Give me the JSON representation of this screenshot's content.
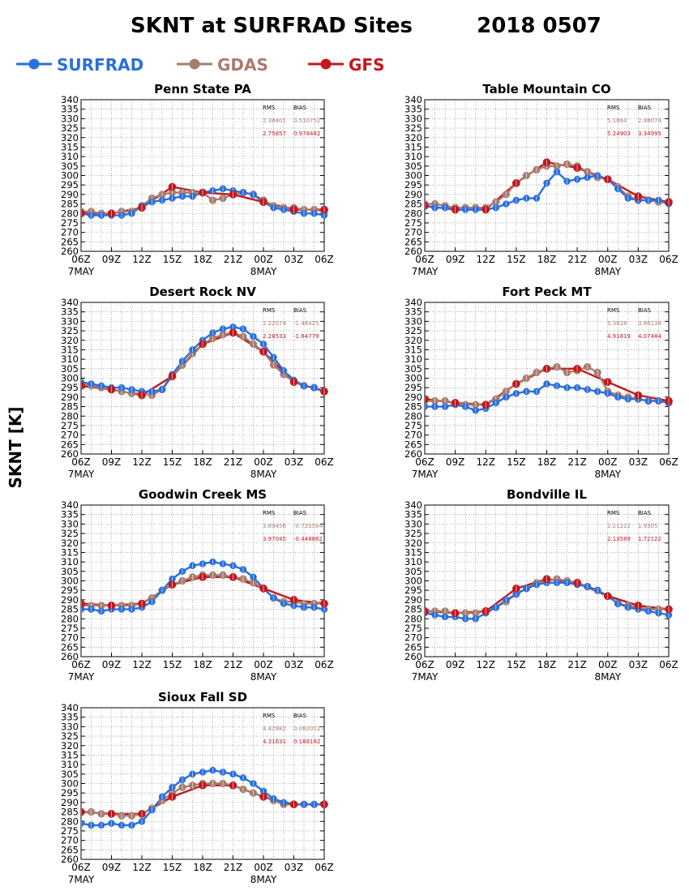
{
  "title": "SKNT at SURFRAD Sites",
  "date": "2018 0507",
  "ylabel": "SKNT [K]",
  "legend": [
    {
      "name": "SURFRAD",
      "color": "#2a6fdb"
    },
    {
      "name": "GDAS",
      "color": "#a87c6f"
    },
    {
      "name": "GFS",
      "color": "#c0181e"
    }
  ],
  "stats_header": {
    "rms": "RMS",
    "bias": "BIAS"
  },
  "x_ticks": [
    "06Z",
    "09Z",
    "12Z",
    "15Z",
    "18Z",
    "21Z",
    "00Z",
    "03Z",
    "06Z"
  ],
  "x_day_labels": [
    "7MAY",
    "8MAY"
  ],
  "y_ticks": [
    260,
    265,
    270,
    275,
    280,
    285,
    290,
    295,
    300,
    305,
    310,
    315,
    320,
    325,
    330,
    335,
    340
  ],
  "chart_data": [
    {
      "type": "line",
      "title": "Penn State PA",
      "ylim": [
        260,
        340
      ],
      "x_hours": [
        6,
        30
      ],
      "stats": {
        "gdas": {
          "rms": "2.38401",
          "bias": "0.510752"
        },
        "gfs": {
          "rms": "2.75857",
          "bias": "0.978482"
        }
      },
      "series": [
        {
          "name": "SURFRAD",
          "x": [
            6,
            7,
            8,
            9,
            10,
            11,
            12,
            13,
            14,
            15,
            16,
            17,
            18,
            19,
            20,
            21,
            22,
            23,
            24,
            25,
            26,
            27,
            28,
            29,
            30
          ],
          "values": [
            280,
            279,
            279,
            279,
            279,
            280,
            284,
            286,
            287,
            288,
            289,
            289,
            291,
            292,
            293,
            292,
            291,
            290,
            286,
            283,
            282,
            281,
            280,
            280,
            279
          ]
        },
        {
          "name": "GDAS",
          "x": [
            6,
            7,
            8,
            9,
            10,
            11,
            12,
            13,
            14,
            15,
            16,
            17,
            18,
            19,
            20,
            21,
            22,
            23,
            24,
            25,
            26,
            27,
            28,
            29,
            30
          ],
          "values": [
            281,
            281,
            280,
            280,
            281,
            281,
            284,
            288,
            290,
            291,
            291,
            291,
            291,
            287,
            288,
            290,
            291,
            290,
            287,
            284,
            283,
            283,
            282,
            282,
            281
          ]
        },
        {
          "name": "GFS",
          "x": [
            6,
            9,
            12,
            15,
            18,
            21,
            24,
            27,
            30
          ],
          "values": [
            280,
            280,
            283,
            294,
            291,
            290,
            286,
            282,
            282
          ]
        }
      ]
    },
    {
      "type": "line",
      "title": "Table Mountain CO",
      "ylim": [
        260,
        340
      ],
      "x_hours": [
        6,
        30
      ],
      "stats": {
        "gdas": {
          "rms": "5.1884",
          "bias": "2.98074"
        },
        "gfs": {
          "rms": "5.24903",
          "bias": "3.34995"
        }
      },
      "series": [
        {
          "name": "SURFRAD",
          "x": [
            6,
            7,
            8,
            9,
            10,
            11,
            12,
            13,
            14,
            15,
            16,
            17,
            18,
            19,
            20,
            21,
            22,
            23,
            24,
            25,
            26,
            27,
            28,
            29,
            30
          ],
          "values": [
            284,
            283,
            283,
            282,
            282,
            282,
            282,
            283,
            285,
            287,
            288,
            288,
            296,
            302,
            297,
            298,
            299,
            300,
            298,
            293,
            288,
            287,
            287,
            287,
            285
          ]
        },
        {
          "name": "GDAS",
          "x": [
            6,
            7,
            8,
            9,
            10,
            11,
            12,
            13,
            14,
            15,
            16,
            17,
            18,
            19,
            20,
            21,
            22,
            23,
            24,
            25,
            26,
            27,
            28,
            29,
            30
          ],
          "values": [
            285,
            285,
            284,
            283,
            283,
            283,
            283,
            286,
            290,
            296,
            300,
            303,
            305,
            305,
            306,
            305,
            302,
            299,
            298,
            294,
            289,
            287,
            287,
            286,
            286
          ]
        },
        {
          "name": "GFS",
          "x": [
            6,
            9,
            12,
            15,
            18,
            21,
            24,
            27,
            30
          ],
          "values": [
            284,
            282,
            282,
            296,
            307,
            304,
            298,
            289,
            286
          ]
        }
      ]
    },
    {
      "type": "line",
      "title": "Desert Rock NV",
      "ylim": [
        260,
        340
      ],
      "x_hours": [
        6,
        30
      ],
      "stats": {
        "gdas": {
          "rms": "2.22074",
          "bias": "-1.48425"
        },
        "gfs": {
          "rms": "2.28533",
          "bias": "-1.84779"
        }
      },
      "series": [
        {
          "name": "SURFRAD",
          "x": [
            6,
            7,
            8,
            9,
            10,
            11,
            12,
            13,
            14,
            15,
            16,
            17,
            18,
            19,
            20,
            21,
            22,
            23,
            24,
            25,
            26,
            27,
            28,
            29,
            30
          ],
          "values": [
            298,
            297,
            296,
            295,
            295,
            294,
            293,
            293,
            294,
            302,
            309,
            315,
            320,
            324,
            326,
            327,
            326,
            322,
            318,
            311,
            304,
            299,
            296,
            295,
            293
          ]
        },
        {
          "name": "GDAS",
          "x": [
            6,
            7,
            8,
            9,
            10,
            11,
            12,
            13,
            14,
            15,
            16,
            17,
            18,
            19,
            20,
            21,
            22,
            23,
            24,
            25,
            26,
            27,
            28,
            29,
            30
          ],
          "values": [
            297,
            296,
            295,
            294,
            293,
            292,
            292,
            291,
            294,
            301,
            307,
            313,
            318,
            321,
            323,
            324,
            322,
            318,
            314,
            307,
            302,
            298,
            296,
            295,
            293
          ]
        },
        {
          "name": "GFS",
          "x": [
            6,
            9,
            12,
            15,
            18,
            21,
            24,
            27,
            30
          ],
          "values": [
            296,
            294,
            291,
            301,
            318,
            324,
            314,
            298,
            293
          ]
        }
      ]
    },
    {
      "type": "line",
      "title": "Fort Peck MT",
      "ylim": [
        260,
        340
      ],
      "x_hours": [
        6,
        30
      ],
      "stats": {
        "gdas": {
          "rms": "5.3828",
          "bias": "3.86138"
        },
        "gfs": {
          "rms": "4.91819",
          "bias": "4.07484"
        }
      },
      "series": [
        {
          "name": "SURFRAD",
          "x": [
            6,
            7,
            8,
            9,
            10,
            11,
            12,
            13,
            14,
            15,
            16,
            17,
            18,
            19,
            20,
            21,
            22,
            23,
            24,
            25,
            26,
            27,
            28,
            29,
            30
          ],
          "values": [
            285,
            285,
            285,
            286,
            285,
            283,
            284,
            287,
            290,
            292,
            293,
            293,
            297,
            296,
            295,
            295,
            294,
            293,
            292,
            290,
            289,
            289,
            288,
            288,
            287
          ]
        },
        {
          "name": "GDAS",
          "x": [
            6,
            7,
            8,
            9,
            10,
            11,
            12,
            13,
            14,
            15,
            16,
            17,
            18,
            19,
            20,
            21,
            22,
            23,
            24,
            25,
            26,
            27,
            28,
            29,
            30
          ],
          "values": [
            288,
            288,
            288,
            287,
            286,
            286,
            286,
            289,
            293,
            297,
            300,
            303,
            305,
            306,
            303,
            304,
            306,
            303,
            293,
            291,
            290,
            289,
            288,
            288,
            287
          ]
        },
        {
          "name": "GFS",
          "x": [
            6,
            9,
            12,
            15,
            18,
            21,
            24,
            27,
            30
          ],
          "values": [
            289,
            287,
            286,
            297,
            305,
            305,
            298,
            291,
            288
          ]
        }
      ]
    },
    {
      "type": "line",
      "title": "Goodwin Creek MS",
      "ylim": [
        260,
        340
      ],
      "x_hours": [
        6,
        30
      ],
      "stats": {
        "gdas": {
          "rms": "3.89456",
          "bias": "-0.735584"
        },
        "gfs": {
          "rms": "3.97045",
          "bias": "-0.448882"
        }
      },
      "series": [
        {
          "name": "SURFRAD",
          "x": [
            6,
            7,
            8,
            9,
            10,
            11,
            12,
            13,
            14,
            15,
            16,
            17,
            18,
            19,
            20,
            21,
            22,
            23,
            24,
            25,
            26,
            27,
            28,
            29,
            30
          ],
          "values": [
            285,
            285,
            284,
            285,
            285,
            285,
            286,
            289,
            295,
            301,
            305,
            308,
            309,
            310,
            309,
            308,
            306,
            302,
            296,
            291,
            288,
            287,
            286,
            286,
            285
          ]
        },
        {
          "name": "GDAS",
          "x": [
            6,
            7,
            8,
            9,
            10,
            11,
            12,
            13,
            14,
            15,
            16,
            17,
            18,
            19,
            20,
            21,
            22,
            23,
            24,
            25,
            26,
            27,
            28,
            29,
            30
          ],
          "values": [
            287,
            287,
            287,
            287,
            287,
            287,
            288,
            291,
            295,
            298,
            300,
            302,
            303,
            303,
            303,
            302,
            301,
            299,
            296,
            291,
            289,
            289,
            288,
            288,
            288
          ]
        },
        {
          "name": "GFS",
          "x": [
            6,
            9,
            12,
            15,
            18,
            21,
            24,
            27,
            30
          ],
          "values": [
            288,
            287,
            288,
            298,
            302,
            302,
            296,
            290,
            288
          ]
        }
      ]
    },
    {
      "type": "line",
      "title": "Bondville IL",
      "ylim": [
        260,
        340
      ],
      "x_hours": [
        6,
        30
      ],
      "stats": {
        "gdas": {
          "rms": "2.21222",
          "bias": "1.9305"
        },
        "gfs": {
          "rms": "2.13589",
          "bias": "1.72122"
        }
      },
      "series": [
        {
          "name": "SURFRAD",
          "x": [
            6,
            7,
            8,
            9,
            10,
            11,
            12,
            13,
            14,
            15,
            16,
            17,
            18,
            19,
            20,
            21,
            22,
            23,
            24,
            25,
            26,
            27,
            28,
            29,
            30
          ],
          "values": [
            283,
            282,
            281,
            281,
            280,
            280,
            283,
            286,
            290,
            293,
            296,
            298,
            299,
            299,
            299,
            298,
            297,
            295,
            292,
            288,
            286,
            285,
            284,
            283,
            282
          ]
        },
        {
          "name": "GDAS",
          "x": [
            6,
            7,
            8,
            9,
            10,
            11,
            12,
            13,
            14,
            15,
            16,
            17,
            18,
            19,
            20,
            21,
            22,
            23,
            24,
            25,
            26,
            27,
            28,
            29,
            30
          ],
          "values": [
            284,
            284,
            284,
            283,
            283,
            283,
            284,
            286,
            289,
            293,
            296,
            299,
            300,
            301,
            300,
            299,
            297,
            295,
            292,
            288,
            287,
            286,
            285,
            285,
            285
          ]
        },
        {
          "name": "GFS",
          "x": [
            6,
            9,
            12,
            15,
            18,
            21,
            24,
            27,
            30
          ],
          "values": [
            284,
            283,
            284,
            296,
            301,
            299,
            292,
            287,
            285
          ]
        }
      ]
    },
    {
      "type": "line",
      "title": "Sioux Fall SD",
      "ylim": [
        260,
        340
      ],
      "x_hours": [
        6,
        30
      ],
      "stats": {
        "gdas": {
          "rms": "4.42982",
          "bias": "0.0820227"
        },
        "gfs": {
          "rms": "4.31631",
          "bias": "0.188182"
        }
      },
      "series": [
        {
          "name": "SURFRAD",
          "x": [
            6,
            7,
            8,
            9,
            10,
            11,
            12,
            13,
            14,
            15,
            16,
            17,
            18,
            19,
            20,
            21,
            22,
            23,
            24,
            25,
            26,
            27,
            28,
            29,
            30
          ],
          "values": [
            279,
            278,
            278,
            279,
            278,
            278,
            280,
            286,
            293,
            298,
            302,
            305,
            306,
            307,
            306,
            305,
            303,
            300,
            296,
            292,
            290,
            289,
            289,
            289,
            289
          ]
        },
        {
          "name": "GDAS",
          "x": [
            6,
            7,
            8,
            9,
            10,
            11,
            12,
            13,
            14,
            15,
            16,
            17,
            18,
            19,
            20,
            21,
            22,
            23,
            24,
            25,
            26,
            27,
            28,
            29,
            30
          ],
          "values": [
            285,
            285,
            284,
            284,
            283,
            283,
            284,
            287,
            291,
            295,
            298,
            299,
            300,
            300,
            300,
            299,
            297,
            295,
            293,
            291,
            289,
            289,
            289,
            289,
            289
          ]
        },
        {
          "name": "GFS",
          "x": [
            6,
            9,
            12,
            15,
            18,
            21,
            24,
            27,
            30
          ],
          "values": [
            285,
            284,
            284,
            293,
            299,
            299,
            293,
            289,
            289
          ]
        }
      ]
    }
  ]
}
